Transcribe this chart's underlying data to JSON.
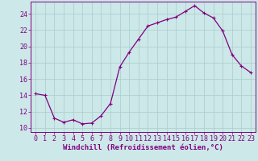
{
  "x": [
    0,
    1,
    2,
    3,
    4,
    5,
    6,
    7,
    8,
    9,
    10,
    11,
    12,
    13,
    14,
    15,
    16,
    17,
    18,
    19,
    20,
    21,
    22,
    23
  ],
  "y": [
    14.2,
    14.0,
    11.2,
    10.7,
    11.0,
    10.5,
    10.6,
    11.5,
    13.0,
    17.5,
    19.3,
    20.9,
    22.5,
    22.9,
    23.3,
    23.6,
    24.3,
    25.0,
    24.1,
    23.5,
    21.9,
    19.0,
    17.6,
    16.8
  ],
  "line_color": "#800080",
  "marker": "+",
  "marker_size": 3,
  "bg_color": "#cce8e8",
  "grid_color": "#aacccc",
  "xlabel": "Windchill (Refroidissement éolien,°C)",
  "xlabel_color": "#800080",
  "tick_color": "#800080",
  "spine_color": "#800080",
  "ylim": [
    9.5,
    25.5
  ],
  "xlim": [
    -0.5,
    23.5
  ],
  "yticks": [
    10,
    12,
    14,
    16,
    18,
    20,
    22,
    24
  ],
  "xticks": [
    0,
    1,
    2,
    3,
    4,
    5,
    6,
    7,
    8,
    9,
    10,
    11,
    12,
    13,
    14,
    15,
    16,
    17,
    18,
    19,
    20,
    21,
    22,
    23
  ],
  "xlabel_fontsize": 6.5,
  "tick_fontsize": 6.0,
  "linewidth": 0.9,
  "grid_linewidth": 0.5
}
